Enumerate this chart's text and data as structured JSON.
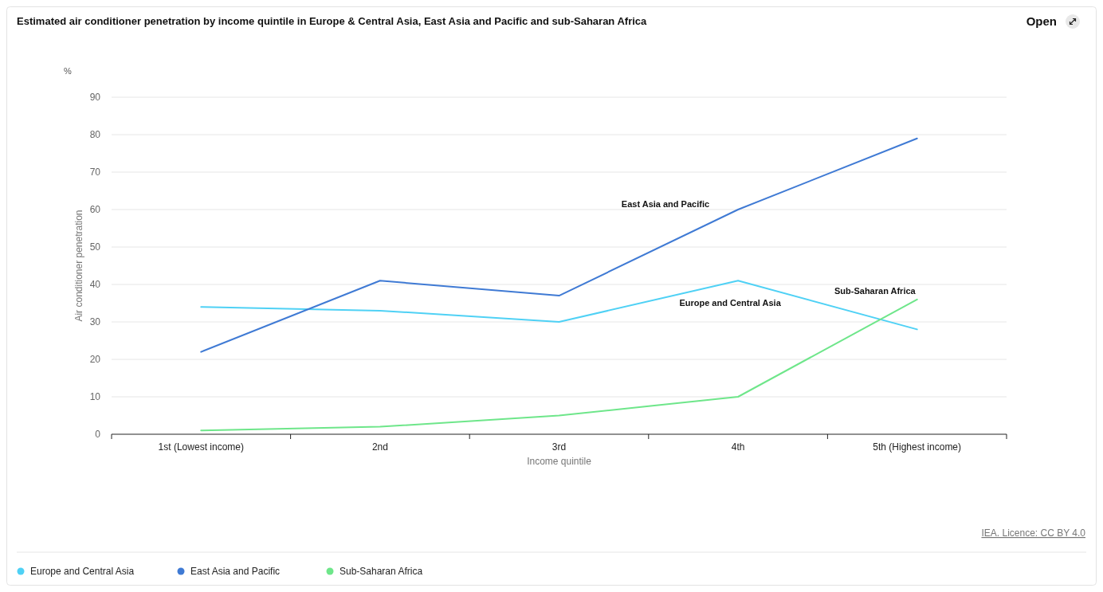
{
  "chart_data": {
    "type": "line",
    "title": "Estimated air conditioner penetration by income quintile in Europe & Central Asia, East Asia and Pacific and sub-Saharan Africa",
    "xlabel": "Income quintile",
    "ylabel": "Air conditioner penetration",
    "annotations": [
      "IEA. Licence: CC BY 4.0",
      "Open",
      "%"
    ],
    "categories": [
      "1st (Lowest income)",
      "2nd",
      "3rd",
      "4th",
      "5th (Highest income)"
    ],
    "series": [
      {
        "name": "Europe and Central Asia",
        "color": "#4fd1f5",
        "values": [
          34,
          33,
          30,
          41,
          28
        ]
      },
      {
        "name": "East Asia and Pacific",
        "color": "#3f7ad4",
        "values": [
          22,
          41,
          37,
          60,
          79
        ]
      },
      {
        "name": "Sub-Saharan Africa",
        "color": "#6ee68a",
        "values": [
          1,
          2,
          5,
          10,
          36
        ]
      }
    ],
    "ylim": [
      0,
      90
    ],
    "yticks": [
      0,
      10,
      20,
      30,
      40,
      50,
      60,
      70,
      80,
      90
    ],
    "grid": "y",
    "legend": "bottom",
    "marker": "none",
    "line_style": "solid"
  }
}
